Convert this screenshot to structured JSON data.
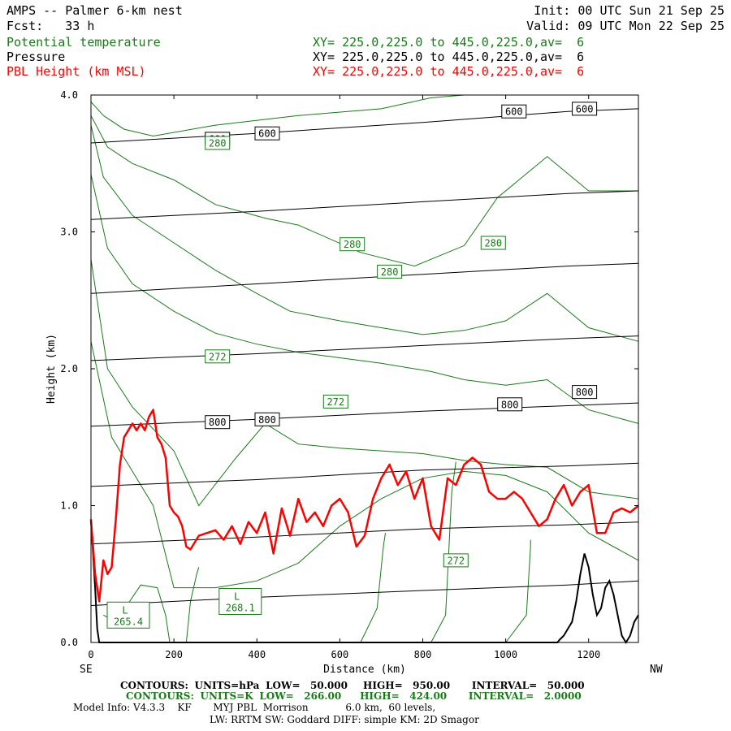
{
  "header": {
    "title": "AMPS -- Palmer 6-km nest",
    "fcst": "Fcst:   33 h",
    "init": "Init: 00 UTC Sun 21 Sep 25",
    "valid": "Valid: 09 UTC Mon 22 Sep 25",
    "legend": [
      {
        "name": "Potential temperature",
        "xy": "XY= 225.0,225.0 to 445.0,225.0,av=  6",
        "color": "#1a7a1a"
      },
      {
        "name": "Pressure",
        "xy": "XY= 225.0,225.0 to 445.0,225.0,av=  6",
        "color": "#000000"
      },
      {
        "name": "PBL Height (km MSL)",
        "xy": "XY= 225.0,225.0 to 445.0,225.0,av=  6",
        "color": "#ff0000"
      }
    ]
  },
  "footer": {
    "line1": {
      "contours": "CONTOURS:",
      "units": "UNITS=hPa",
      "low": "LOW=   50.000",
      "high": "HIGH=   950.00",
      "interval": "INTERVAL=   50.000"
    },
    "line2": {
      "contours": "CONTOURS:",
      "units": "UNITS=K",
      "low": "LOW=   266.00",
      "high": "HIGH=   424.00",
      "interval": "INTERVAL=   2.0000"
    },
    "line3": "Model Info: V4.3.3    KF       MYJ PBL  Morrison            6.0 km,  60 levels,",
    "line4": "LW: RRTM SW: Goddard DIFF: simple KM: 2D Smagor"
  },
  "chart_data": {
    "type": "line",
    "xlabel": "Distance (km)",
    "ylabel": "Height (km)",
    "xlim": [
      0,
      1320
    ],
    "ylim": [
      0,
      4
    ],
    "x_ticks": [
      "0",
      "200",
      "400",
      "600",
      "800",
      "1000",
      "1200"
    ],
    "x_tick_values": [
      0,
      200,
      400,
      600,
      800,
      1000,
      1200
    ],
    "y_ticks": [
      "0.0",
      "1.0",
      "2.0",
      "3.0",
      "4.0"
    ],
    "y_tick_values": [
      0,
      1,
      2,
      3,
      4
    ],
    "x_end_labels": {
      "left": "SE",
      "right": "NW"
    },
    "colors": {
      "pressure": "#000000",
      "theta": "#1a7a1a",
      "pbl": "#ff0000"
    },
    "pressure_contours": [
      {
        "x": [
          0,
          400,
          800,
          1150,
          1320
        ],
        "y": [
          0.27,
          0.33,
          0.38,
          0.42,
          0.45
        ]
      },
      {
        "x": [
          0,
          400,
          800,
          1150,
          1320
        ],
        "y": [
          0.72,
          0.77,
          0.83,
          0.86,
          0.88
        ]
      },
      {
        "x": [
          0,
          400,
          800,
          1150,
          1320
        ],
        "y": [
          1.14,
          1.19,
          1.26,
          1.29,
          1.31
        ]
      },
      {
        "x": [
          0,
          400,
          800,
          1150,
          1320
        ],
        "y": [
          1.58,
          1.63,
          1.69,
          1.73,
          1.75
        ]
      },
      {
        "x": [
          0,
          400,
          800,
          1150,
          1320
        ],
        "y": [
          2.06,
          2.11,
          2.17,
          2.22,
          2.24
        ]
      },
      {
        "x": [
          0,
          400,
          800,
          1150,
          1320
        ],
        "y": [
          2.55,
          2.62,
          2.69,
          2.75,
          2.77
        ]
      },
      {
        "x": [
          0,
          400,
          800,
          1150,
          1320
        ],
        "y": [
          3.09,
          3.15,
          3.22,
          3.28,
          3.3
        ]
      },
      {
        "x": [
          0,
          400,
          800,
          1150,
          1320
        ],
        "y": [
          3.65,
          3.72,
          3.8,
          3.88,
          3.9
        ]
      }
    ],
    "pressure_labels": [
      {
        "text": "600",
        "x": 305,
        "y": 3.68
      },
      {
        "text": "600",
        "x": 425,
        "y": 3.72
      },
      {
        "text": "600",
        "x": 1020,
        "y": 3.88
      },
      {
        "text": "600",
        "x": 1190,
        "y": 3.9
      },
      {
        "text": "800",
        "x": 305,
        "y": 1.61
      },
      {
        "text": "800",
        "x": 425,
        "y": 1.63
      },
      {
        "text": "800",
        "x": 1010,
        "y": 1.74
      },
      {
        "text": "800",
        "x": 1190,
        "y": 1.83
      }
    ],
    "theta_contours": [
      {
        "x": [
          0,
          30,
          80,
          150,
          300,
          500,
          700,
          820,
          900,
          1000,
          1100,
          1320
        ],
        "y": [
          3.95,
          3.85,
          3.75,
          3.7,
          3.78,
          3.85,
          3.9,
          3.98,
          4.0,
          4.0,
          4.0,
          4.0
        ]
      },
      {
        "x": [
          0,
          40,
          100,
          200,
          300,
          420,
          500,
          650,
          780,
          900,
          980,
          1100,
          1200,
          1320
        ],
        "y": [
          3.85,
          3.62,
          3.5,
          3.38,
          3.2,
          3.1,
          3.05,
          2.85,
          2.75,
          2.9,
          3.25,
          3.55,
          3.3,
          3.3
        ]
      },
      {
        "x": [
          0,
          30,
          100,
          200,
          300,
          400,
          480,
          600,
          700,
          800,
          900,
          1000,
          1100,
          1200,
          1320
        ],
        "y": [
          3.78,
          3.4,
          3.12,
          2.92,
          2.72,
          2.55,
          2.42,
          2.35,
          2.3,
          2.25,
          2.28,
          2.35,
          2.55,
          2.3,
          2.2
        ]
      },
      {
        "x": [
          0,
          40,
          100,
          200,
          300,
          400,
          500,
          600,
          700,
          820,
          900,
          1000,
          1100,
          1200,
          1320
        ],
        "y": [
          3.42,
          2.88,
          2.62,
          2.42,
          2.26,
          2.18,
          2.12,
          2.08,
          2.04,
          1.98,
          1.92,
          1.88,
          1.92,
          1.7,
          1.6
        ]
      },
      {
        "x": [
          0,
          40,
          100,
          200,
          260,
          350,
          420,
          500,
          600,
          700,
          800,
          900,
          1000,
          1100,
          1200,
          1320
        ],
        "y": [
          2.8,
          2.0,
          1.72,
          1.4,
          1.0,
          1.35,
          1.6,
          1.45,
          1.42,
          1.4,
          1.38,
          1.33,
          1.3,
          1.28,
          1.1,
          1.05
        ]
      },
      {
        "x": [
          0,
          50,
          100,
          150,
          200,
          300,
          400,
          500,
          600,
          700,
          800,
          900,
          1000,
          1100,
          1200,
          1320
        ],
        "y": [
          2.2,
          1.5,
          1.25,
          1.0,
          0.4,
          0.4,
          0.45,
          0.58,
          0.85,
          1.05,
          1.2,
          1.25,
          1.22,
          1.1,
          0.8,
          0.6
        ]
      },
      {
        "x": [
          30,
          60,
          120,
          160,
          180,
          190
        ],
        "y": [
          0.2,
          0.15,
          0.42,
          0.4,
          0.2,
          0.0
        ]
      },
      {
        "x": [
          230,
          240,
          255,
          260
        ],
        "y": [
          0.0,
          0.3,
          0.5,
          0.55
        ]
      },
      {
        "x": [
          650,
          690,
          705,
          710
        ],
        "y": [
          0.0,
          0.25,
          0.7,
          0.8
        ]
      },
      {
        "x": [
          820,
          855,
          870,
          880
        ],
        "y": [
          0.0,
          0.2,
          1.1,
          1.32
        ]
      },
      {
        "x": [
          1000,
          1050,
          1060,
          1060
        ],
        "y": [
          0.0,
          0.2,
          0.7,
          0.75
        ]
      }
    ],
    "theta_labels": [
      {
        "text": "280",
        "x": 305,
        "y": 3.65
      },
      {
        "text": "280",
        "x": 630,
        "y": 2.91
      },
      {
        "text": "280",
        "x": 720,
        "y": 2.71
      },
      {
        "text": "280",
        "x": 970,
        "y": 2.92
      },
      {
        "text": "272",
        "x": 305,
        "y": 2.09
      },
      {
        "text": "272",
        "x": 590,
        "y": 1.76
      },
      {
        "text": "272",
        "x": 880,
        "y": 0.6
      }
    ],
    "lows": [
      {
        "symbol": "L",
        "value": "265.4",
        "x": 90,
        "y": 0.2
      },
      {
        "symbol": "L",
        "value": "268.1",
        "x": 360,
        "y": 0.3
      }
    ],
    "pbl": {
      "x": [
        0,
        10,
        20,
        30,
        40,
        50,
        60,
        70,
        80,
        90,
        100,
        110,
        120,
        130,
        140,
        150,
        160,
        170,
        180,
        190,
        200,
        210,
        220,
        230,
        240,
        260,
        280,
        300,
        320,
        340,
        360,
        380,
        400,
        420,
        440,
        460,
        480,
        500,
        520,
        540,
        560,
        580,
        600,
        620,
        640,
        660,
        680,
        700,
        720,
        740,
        760,
        780,
        800,
        820,
        840,
        860,
        880,
        900,
        920,
        940,
        960,
        980,
        1000,
        1020,
        1040,
        1060,
        1080,
        1100,
        1120,
        1140,
        1160,
        1180,
        1200,
        1220,
        1240,
        1260,
        1280,
        1300,
        1320
      ],
      "y": [
        0.9,
        0.5,
        0.3,
        0.6,
        0.5,
        0.55,
        0.9,
        1.3,
        1.5,
        1.55,
        1.6,
        1.55,
        1.6,
        1.55,
        1.65,
        1.7,
        1.5,
        1.45,
        1.35,
        1.0,
        0.95,
        0.92,
        0.85,
        0.7,
        0.68,
        0.78,
        0.8,
        0.82,
        0.75,
        0.85,
        0.72,
        0.88,
        0.8,
        0.95,
        0.65,
        0.98,
        0.78,
        1.05,
        0.88,
        0.95,
        0.85,
        1.0,
        1.05,
        0.95,
        0.7,
        0.78,
        1.05,
        1.2,
        1.3,
        1.15,
        1.25,
        1.05,
        1.2,
        0.85,
        0.75,
        1.2,
        1.15,
        1.3,
        1.35,
        1.3,
        1.1,
        1.05,
        1.05,
        1.1,
        1.05,
        0.95,
        0.85,
        0.9,
        1.05,
        1.15,
        1.0,
        1.1,
        1.15,
        0.8,
        0.8,
        0.95,
        0.98,
        0.95,
        1.0
      ]
    },
    "terrain": {
      "x": [
        0,
        10,
        15,
        20,
        30,
        1125,
        1130,
        1140,
        1150,
        1160,
        1170,
        1180,
        1190,
        1200,
        1210,
        1220,
        1230,
        1240,
        1250,
        1260,
        1270,
        1280,
        1290,
        1300,
        1310,
        1320
      ],
      "y": [
        0.9,
        0.4,
        0.1,
        0.0,
        0.0,
        0.0,
        0.02,
        0.05,
        0.1,
        0.15,
        0.3,
        0.5,
        0.65,
        0.55,
        0.35,
        0.2,
        0.25,
        0.4,
        0.45,
        0.35,
        0.2,
        0.05,
        0.0,
        0.05,
        0.15,
        0.2
      ]
    }
  }
}
